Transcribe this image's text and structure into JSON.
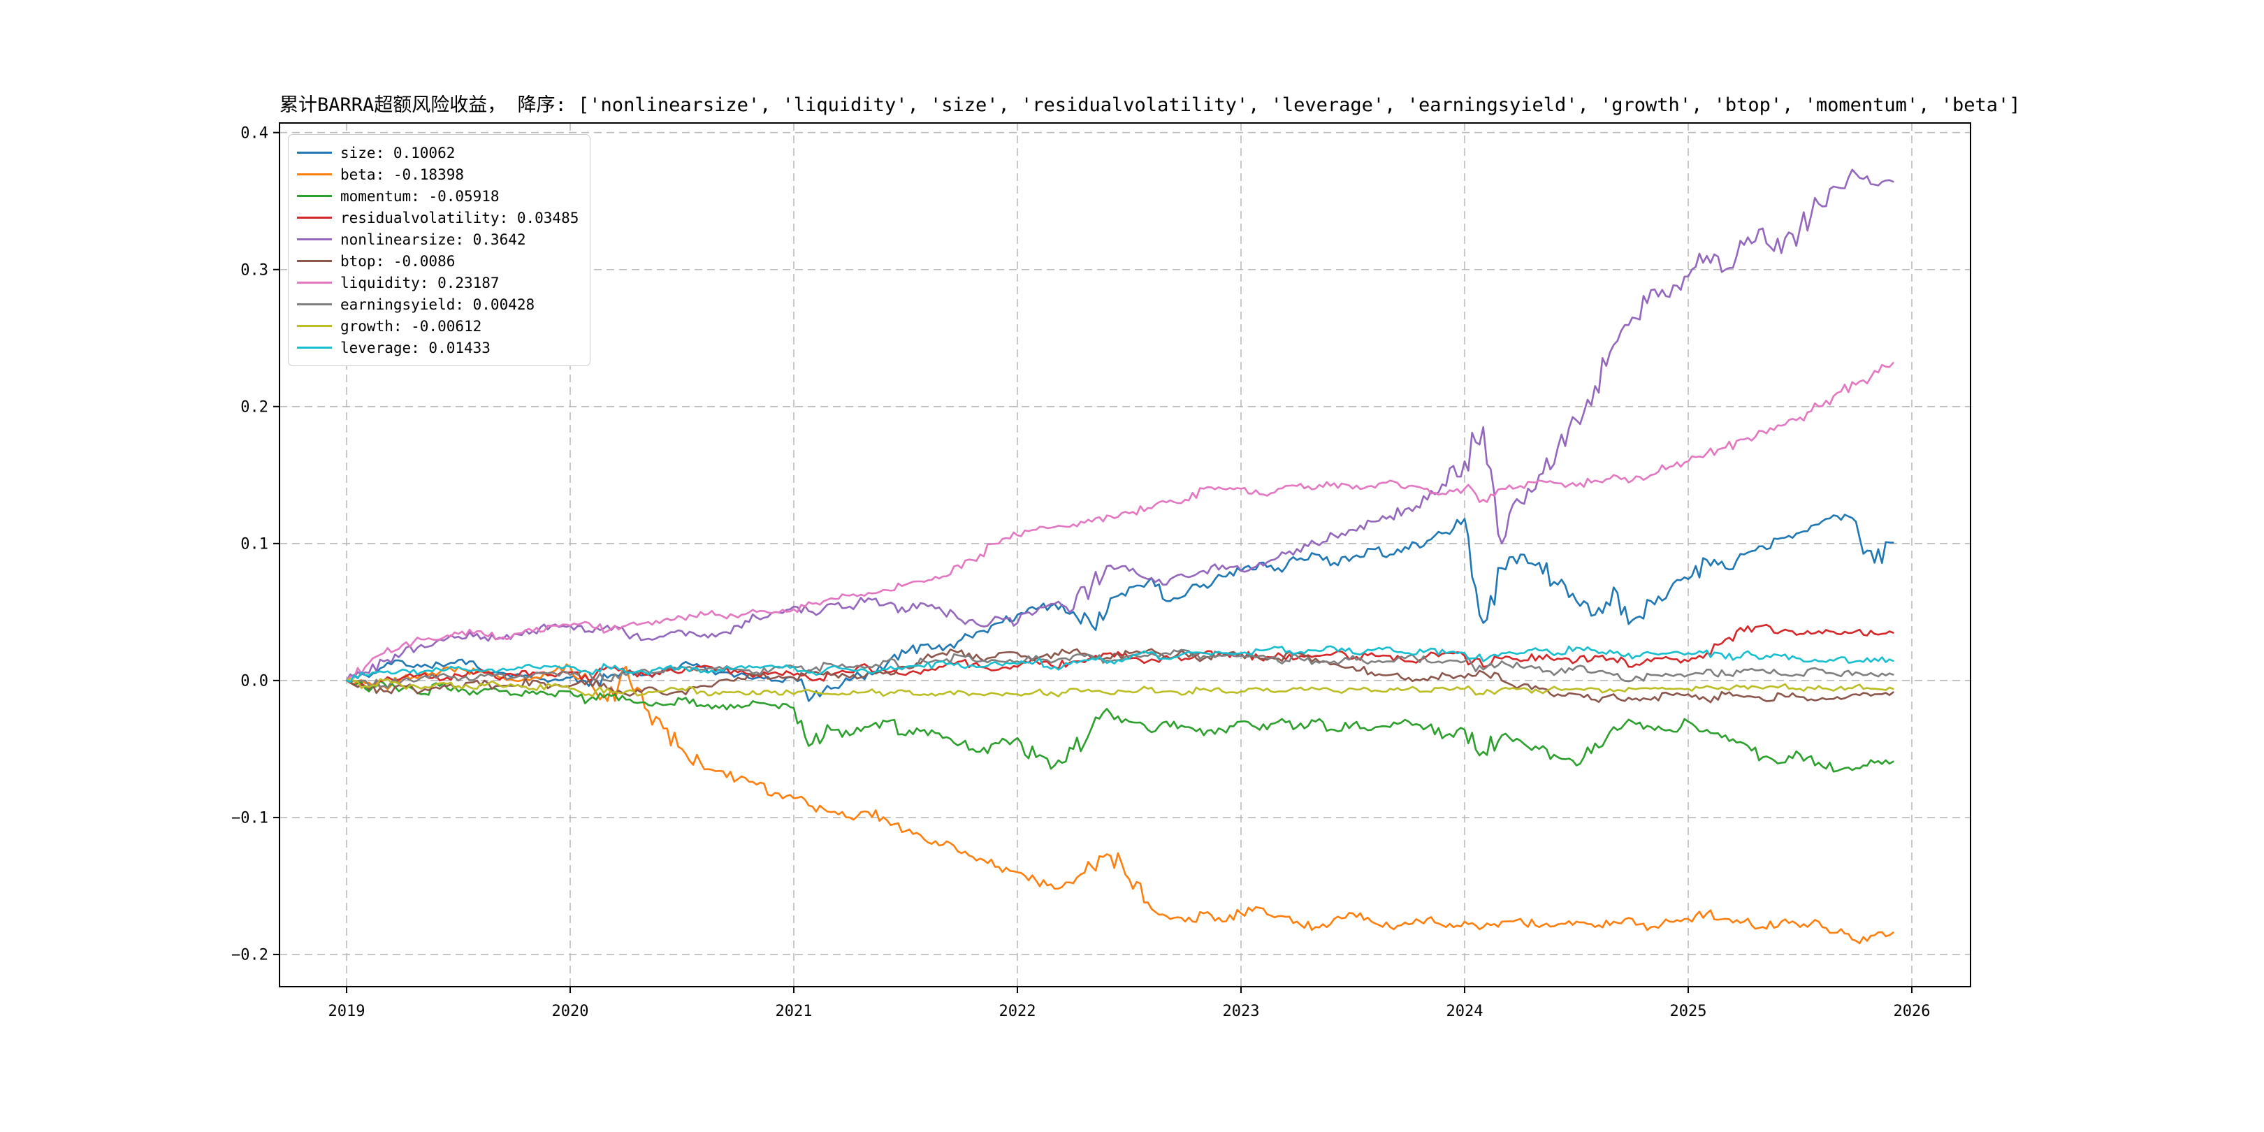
{
  "chart_data": {
    "type": "line",
    "title": "累计BARRA超额风险收益， 降序: ['nonlinearsize', 'liquidity', 'size', 'residualvolatility', 'leverage', 'earningsyield', 'growth', 'btop', 'momentum', 'beta']",
    "xlabel": "",
    "ylabel": "",
    "grid": "dashed",
    "legend_position": "upper-left",
    "xlim": [
      2018.7,
      2026.2625
    ],
    "ylim": [
      -0.2235,
      0.407
    ],
    "x_ticks": [
      {
        "value": 2019,
        "label": "2019"
      },
      {
        "value": 2020,
        "label": "2020"
      },
      {
        "value": 2021,
        "label": "2021"
      },
      {
        "value": 2022,
        "label": "2022"
      },
      {
        "value": 2023,
        "label": "2023"
      },
      {
        "value": 2024,
        "label": "2024"
      },
      {
        "value": 2025,
        "label": "2025"
      },
      {
        "value": 2026,
        "label": "2026"
      }
    ],
    "y_ticks": [
      {
        "value": -0.2,
        "label": "−0.2"
      },
      {
        "value": -0.1,
        "label": "−0.1"
      },
      {
        "value": 0.0,
        "label": "0.0"
      },
      {
        "value": 0.1,
        "label": "0.1"
      },
      {
        "value": 0.2,
        "label": "0.2"
      },
      {
        "value": 0.3,
        "label": "0.3"
      },
      {
        "value": 0.4,
        "label": "0.4"
      }
    ],
    "x_start": 2019,
    "x_step_years": 0.0833333,
    "series": [
      {
        "name": "size",
        "color": "#1f77b4",
        "legend_label": "size: 0.10062",
        "final_value": 0.10062,
        "values": [
          0.0,
          0.004,
          0.01,
          0.014,
          0.01,
          0.012,
          0.015,
          0.01,
          0.006,
          0.004,
          0.002,
          0.0,
          0.002,
          -0.004,
          0.002,
          0.006,
          0.004,
          0.008,
          0.012,
          0.01,
          0.006,
          0.004,
          0.002,
          0.0,
          0.002,
          -0.012,
          -0.006,
          0.0,
          0.006,
          0.012,
          0.02,
          0.026,
          0.022,
          0.03,
          0.036,
          0.042,
          0.048,
          0.052,
          0.056,
          0.05,
          0.04,
          0.06,
          0.068,
          0.072,
          0.058,
          0.062,
          0.07,
          0.076,
          0.08,
          0.086,
          0.082,
          0.088,
          0.092,
          0.086,
          0.09,
          0.096,
          0.092,
          0.096,
          0.102,
          0.108,
          0.118,
          0.042,
          0.082,
          0.092,
          0.086,
          0.07,
          0.058,
          0.048,
          0.068,
          0.044,
          0.058,
          0.066,
          0.074,
          0.088,
          0.082,
          0.092,
          0.098,
          0.104,
          0.108,
          0.114,
          0.12,
          0.116,
          0.086,
          0.10062
        ]
      },
      {
        "name": "beta",
        "color": "#ff7f0e",
        "legend_label": "beta: -0.18398",
        "final_value": -0.18398,
        "values": [
          0.0,
          -0.002,
          -0.004,
          0.002,
          0.004,
          0.006,
          0.01,
          0.006,
          0.004,
          0.0,
          0.002,
          0.006,
          0.01,
          0.0,
          -0.015,
          0.01,
          -0.02,
          -0.035,
          -0.05,
          -0.06,
          -0.066,
          -0.072,
          -0.076,
          -0.082,
          -0.086,
          -0.092,
          -0.096,
          -0.1,
          -0.096,
          -0.102,
          -0.11,
          -0.116,
          -0.12,
          -0.126,
          -0.13,
          -0.136,
          -0.14,
          -0.146,
          -0.152,
          -0.148,
          -0.136,
          -0.128,
          -0.145,
          -0.162,
          -0.172,
          -0.176,
          -0.17,
          -0.176,
          -0.17,
          -0.166,
          -0.172,
          -0.176,
          -0.18,
          -0.174,
          -0.17,
          -0.176,
          -0.18,
          -0.178,
          -0.174,
          -0.18,
          -0.176,
          -0.18,
          -0.176,
          -0.174,
          -0.18,
          -0.178,
          -0.176,
          -0.18,
          -0.176,
          -0.174,
          -0.18,
          -0.176,
          -0.174,
          -0.17,
          -0.174,
          -0.176,
          -0.18,
          -0.176,
          -0.18,
          -0.176,
          -0.184,
          -0.19,
          -0.186,
          -0.18398
        ]
      },
      {
        "name": "momentum",
        "color": "#2ca02c",
        "legend_label": "momentum: -0.05918",
        "final_value": -0.05918,
        "values": [
          0.0,
          -0.006,
          -0.002,
          -0.006,
          -0.01,
          -0.004,
          -0.008,
          -0.01,
          -0.006,
          -0.01,
          -0.008,
          -0.01,
          -0.008,
          -0.014,
          -0.01,
          -0.014,
          -0.016,
          -0.018,
          -0.014,
          -0.018,
          -0.02,
          -0.018,
          -0.016,
          -0.018,
          -0.02,
          -0.046,
          -0.036,
          -0.04,
          -0.034,
          -0.03,
          -0.04,
          -0.036,
          -0.042,
          -0.046,
          -0.052,
          -0.046,
          -0.042,
          -0.056,
          -0.062,
          -0.05,
          -0.034,
          -0.024,
          -0.03,
          -0.036,
          -0.03,
          -0.034,
          -0.04,
          -0.036,
          -0.03,
          -0.036,
          -0.03,
          -0.034,
          -0.03,
          -0.036,
          -0.032,
          -0.036,
          -0.034,
          -0.03,
          -0.034,
          -0.04,
          -0.036,
          -0.052,
          -0.04,
          -0.044,
          -0.05,
          -0.056,
          -0.062,
          -0.046,
          -0.034,
          -0.03,
          -0.034,
          -0.036,
          -0.03,
          -0.036,
          -0.04,
          -0.046,
          -0.056,
          -0.06,
          -0.054,
          -0.06,
          -0.066,
          -0.064,
          -0.06,
          -0.05918
        ]
      },
      {
        "name": "residualvolatility",
        "color": "#d62728",
        "legend_label": "residualvolatility: 0.03485",
        "final_value": 0.03485,
        "values": [
          0.0,
          -0.004,
          0.0,
          0.002,
          0.004,
          0.0,
          0.004,
          0.006,
          0.002,
          0.004,
          0.006,
          0.004,
          0.006,
          0.0,
          0.01,
          0.006,
          0.004,
          0.008,
          0.006,
          0.01,
          0.008,
          0.006,
          0.004,
          0.006,
          0.004,
          0.0,
          0.004,
          0.006,
          0.01,
          0.006,
          0.004,
          0.008,
          0.01,
          0.014,
          0.01,
          0.008,
          0.01,
          0.014,
          0.01,
          0.014,
          0.016,
          0.02,
          0.016,
          0.014,
          0.018,
          0.016,
          0.02,
          0.018,
          0.02,
          0.016,
          0.02,
          0.016,
          0.018,
          0.02,
          0.016,
          0.02,
          0.018,
          0.014,
          0.018,
          0.02,
          0.018,
          0.01,
          0.016,
          0.014,
          0.018,
          0.016,
          0.014,
          0.018,
          0.016,
          0.01,
          0.014,
          0.016,
          0.014,
          0.02,
          0.03,
          0.036,
          0.04,
          0.036,
          0.034,
          0.036,
          0.034,
          0.036,
          0.034,
          0.03485
        ]
      },
      {
        "name": "nonlinearsize",
        "color": "#9467bd",
        "legend_label": "nonlinearsize: 0.3642",
        "final_value": 0.3642,
        "values": [
          0.0,
          0.006,
          0.014,
          0.02,
          0.026,
          0.03,
          0.032,
          0.034,
          0.03,
          0.034,
          0.036,
          0.04,
          0.04,
          0.036,
          0.04,
          0.034,
          0.03,
          0.032,
          0.036,
          0.032,
          0.034,
          0.04,
          0.046,
          0.05,
          0.054,
          0.05,
          0.056,
          0.054,
          0.06,
          0.056,
          0.05,
          0.056,
          0.05,
          0.044,
          0.04,
          0.046,
          0.042,
          0.05,
          0.056,
          0.052,
          0.07,
          0.084,
          0.08,
          0.074,
          0.07,
          0.076,
          0.08,
          0.084,
          0.08,
          0.086,
          0.09,
          0.096,
          0.1,
          0.106,
          0.11,
          0.116,
          0.12,
          0.126,
          0.132,
          0.142,
          0.16,
          0.185,
          0.1,
          0.13,
          0.15,
          0.17,
          0.19,
          0.215,
          0.245,
          0.265,
          0.285,
          0.28,
          0.295,
          0.31,
          0.3,
          0.318,
          0.33,
          0.312,
          0.33,
          0.348,
          0.36,
          0.37,
          0.362,
          0.3642
        ]
      },
      {
        "name": "btop",
        "color": "#8c564b",
        "legend_label": "btop: -0.0086",
        "final_value": -0.0086,
        "values": [
          0.0,
          -0.004,
          -0.008,
          -0.004,
          -0.008,
          -0.006,
          -0.004,
          0.0,
          -0.004,
          -0.004,
          0.0,
          -0.004,
          -0.004,
          0.0,
          -0.006,
          -0.01,
          -0.006,
          -0.01,
          -0.008,
          -0.004,
          0.0,
          0.002,
          0.004,
          0.002,
          0.002,
          0.006,
          0.004,
          0.002,
          0.006,
          0.006,
          0.01,
          0.016,
          0.02,
          0.022,
          0.016,
          0.02,
          0.02,
          0.016,
          0.02,
          0.022,
          0.016,
          0.016,
          0.02,
          0.022,
          0.016,
          0.02,
          0.016,
          0.02,
          0.02,
          0.016,
          0.016,
          0.02,
          0.016,
          0.012,
          0.01,
          0.006,
          0.004,
          0.002,
          0.0,
          0.004,
          0.002,
          0.006,
          0.0,
          -0.004,
          -0.006,
          -0.01,
          -0.01,
          -0.014,
          -0.01,
          -0.014,
          -0.014,
          -0.01,
          -0.01,
          -0.014,
          -0.01,
          -0.012,
          -0.014,
          -0.01,
          -0.012,
          -0.014,
          -0.012,
          -0.01,
          -0.01,
          -0.0086
        ]
      },
      {
        "name": "liquidity",
        "color": "#e377c2",
        "legend_label": "liquidity: 0.23187",
        "final_value": 0.23187,
        "values": [
          0.0,
          0.01,
          0.02,
          0.026,
          0.03,
          0.03,
          0.034,
          0.036,
          0.03,
          0.034,
          0.036,
          0.04,
          0.04,
          0.042,
          0.036,
          0.04,
          0.042,
          0.044,
          0.046,
          0.05,
          0.048,
          0.046,
          0.05,
          0.05,
          0.052,
          0.056,
          0.06,
          0.062,
          0.064,
          0.066,
          0.07,
          0.072,
          0.076,
          0.082,
          0.092,
          0.1,
          0.106,
          0.11,
          0.112,
          0.114,
          0.116,
          0.12,
          0.122,
          0.126,
          0.13,
          0.132,
          0.14,
          0.14,
          0.14,
          0.136,
          0.14,
          0.142,
          0.14,
          0.144,
          0.14,
          0.142,
          0.146,
          0.142,
          0.14,
          0.136,
          0.14,
          0.132,
          0.14,
          0.142,
          0.146,
          0.144,
          0.142,
          0.146,
          0.15,
          0.146,
          0.15,
          0.156,
          0.16,
          0.166,
          0.17,
          0.176,
          0.182,
          0.186,
          0.192,
          0.2,
          0.21,
          0.216,
          0.226,
          0.23187
        ]
      },
      {
        "name": "earningsyield",
        "color": "#7f7f7f",
        "legend_label": "earningsyield: 0.00428",
        "final_value": 0.00428,
        "values": [
          0.0,
          0.0,
          -0.004,
          0.0,
          0.002,
          0.004,
          0.0,
          0.002,
          0.004,
          0.002,
          0.004,
          0.006,
          0.004,
          0.006,
          0.0,
          0.004,
          0.008,
          0.006,
          0.01,
          0.008,
          0.01,
          0.008,
          0.006,
          0.01,
          0.01,
          0.008,
          0.012,
          0.01,
          0.01,
          0.014,
          0.01,
          0.014,
          0.014,
          0.018,
          0.014,
          0.014,
          0.014,
          0.018,
          0.014,
          0.018,
          0.018,
          0.014,
          0.018,
          0.018,
          0.02,
          0.022,
          0.018,
          0.018,
          0.018,
          0.018,
          0.014,
          0.018,
          0.014,
          0.014,
          0.018,
          0.014,
          0.014,
          0.018,
          0.014,
          0.014,
          0.014,
          0.008,
          0.014,
          0.01,
          0.01,
          0.006,
          0.01,
          0.006,
          0.004,
          0.0,
          0.004,
          0.004,
          0.004,
          0.008,
          0.004,
          0.008,
          0.008,
          0.004,
          0.004,
          0.008,
          0.004,
          0.006,
          0.004,
          0.00428
        ]
      },
      {
        "name": "growth",
        "color": "#bcbd22",
        "legend_label": "growth: -0.00612",
        "final_value": -0.00612,
        "values": [
          0.0,
          -0.004,
          0.0,
          -0.004,
          -0.006,
          -0.002,
          -0.004,
          -0.006,
          -0.002,
          -0.004,
          -0.006,
          -0.004,
          -0.006,
          -0.01,
          -0.006,
          -0.008,
          -0.01,
          -0.008,
          -0.006,
          -0.008,
          -0.01,
          -0.008,
          -0.01,
          -0.008,
          -0.01,
          -0.008,
          -0.01,
          -0.01,
          -0.008,
          -0.01,
          -0.008,
          -0.01,
          -0.01,
          -0.008,
          -0.01,
          -0.01,
          -0.01,
          -0.008,
          -0.01,
          -0.006,
          -0.008,
          -0.01,
          -0.008,
          -0.006,
          -0.008,
          -0.01,
          -0.006,
          -0.008,
          -0.008,
          -0.006,
          -0.008,
          -0.006,
          -0.006,
          -0.008,
          -0.006,
          -0.008,
          -0.006,
          -0.006,
          -0.008,
          -0.006,
          -0.006,
          -0.01,
          -0.006,
          -0.006,
          -0.008,
          -0.006,
          -0.006,
          -0.006,
          -0.008,
          -0.006,
          -0.006,
          -0.006,
          -0.006,
          -0.004,
          -0.006,
          -0.004,
          -0.006,
          -0.004,
          -0.006,
          -0.004,
          -0.006,
          -0.004,
          -0.006,
          -0.00612
        ]
      },
      {
        "name": "leverage",
        "color": "#17becf",
        "legend_label": "leverage: 0.01433",
        "final_value": 0.01433,
        "values": [
          0.0,
          0.004,
          0.006,
          0.008,
          0.006,
          0.008,
          0.01,
          0.008,
          0.006,
          0.008,
          0.01,
          0.01,
          0.01,
          0.006,
          0.01,
          0.006,
          0.006,
          0.008,
          0.01,
          0.006,
          0.008,
          0.01,
          0.01,
          0.01,
          0.01,
          0.006,
          0.01,
          0.008,
          0.006,
          0.008,
          0.01,
          0.01,
          0.014,
          0.01,
          0.01,
          0.012,
          0.012,
          0.014,
          0.01,
          0.014,
          0.016,
          0.014,
          0.016,
          0.02,
          0.016,
          0.02,
          0.02,
          0.02,
          0.02,
          0.022,
          0.024,
          0.02,
          0.022,
          0.024,
          0.02,
          0.022,
          0.024,
          0.02,
          0.022,
          0.02,
          0.02,
          0.014,
          0.02,
          0.02,
          0.022,
          0.02,
          0.024,
          0.022,
          0.02,
          0.016,
          0.02,
          0.02,
          0.02,
          0.022,
          0.016,
          0.02,
          0.016,
          0.018,
          0.016,
          0.014,
          0.016,
          0.014,
          0.016,
          0.01433
        ]
      }
    ]
  }
}
